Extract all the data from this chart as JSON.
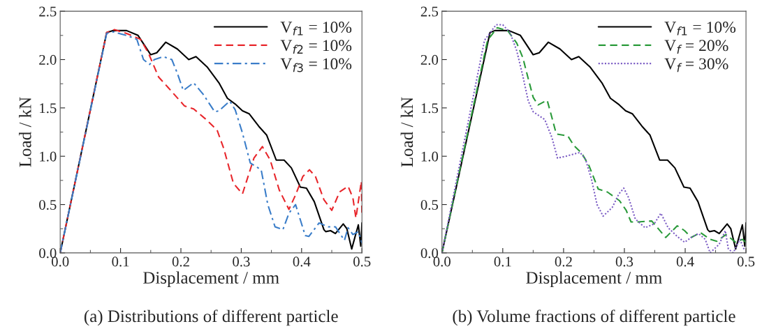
{
  "chart_data": [
    {
      "type": "line",
      "xlabel": "Displacement / mm",
      "ylabel": "Load / kN",
      "annotations": [
        "(a) Distributions of different particle"
      ],
      "xlim": [
        0.0,
        0.5
      ],
      "ylim": [
        0.0,
        2.5
      ],
      "xticks": [
        {
          "value": 0,
          "label": "0.0"
        },
        0.1,
        0.2,
        0.3,
        0.4,
        0.5
      ],
      "yticks": [
        {
          "value": 0,
          "label": "0.0"
        },
        0.5,
        {
          "value": 1,
          "label": "1.0"
        },
        1.5,
        {
          "value": 2,
          "label": "2.0"
        },
        2.5
      ],
      "grid": false,
      "legend": "top right",
      "series": [
        {
          "name": "V$_{f1}$ = 10%",
          "color": "#000000",
          "line_style": "solid",
          "x": [
            0,
            0.077,
            0.087,
            0.11,
            0.129,
            0.15,
            0.16,
            0.175,
            0.194,
            0.213,
            0.225,
            0.244,
            0.263,
            0.277,
            0.29,
            0.302,
            0.313,
            0.329,
            0.342,
            0.358,
            0.371,
            0.383,
            0.398,
            0.408,
            0.421,
            0.437,
            0.44,
            0.448,
            0.456,
            0.469,
            0.475,
            0.483,
            0.494,
            0.498,
            0.5
          ],
          "values": [
            0,
            2.28,
            2.3,
            2.3,
            2.25,
            2.05,
            2.07,
            2.18,
            2.11,
            2.0,
            2.03,
            1.92,
            1.76,
            1.6,
            1.54,
            1.47,
            1.44,
            1.31,
            1.22,
            0.96,
            0.96,
            0.88,
            0.68,
            0.67,
            0.53,
            0.24,
            0.22,
            0.23,
            0.2,
            0.3,
            0.25,
            0.04,
            0.29,
            0.07,
            0.31
          ]
        },
        {
          "name": "V$_{f2}$ = 10%",
          "color": "#e8262b",
          "line_style": "dashed",
          "x": [
            0,
            0.077,
            0.09,
            0.11,
            0.133,
            0.146,
            0.163,
            0.179,
            0.206,
            0.221,
            0.24,
            0.26,
            0.271,
            0.287,
            0.302,
            0.321,
            0.335,
            0.348,
            0.363,
            0.379,
            0.39,
            0.402,
            0.413,
            0.423,
            0.437,
            0.45,
            0.463,
            0.477,
            0.485,
            0.49,
            0.494,
            0.499,
            0.5
          ],
          "values": [
            0,
            2.28,
            2.31,
            2.27,
            2.21,
            2.07,
            1.82,
            1.71,
            1.52,
            1.49,
            1.39,
            1.27,
            1.08,
            0.72,
            0.61,
            0.98,
            1.1,
            0.96,
            0.65,
            0.45,
            0.6,
            0.79,
            0.86,
            0.79,
            0.55,
            0.44,
            0.63,
            0.69,
            0.57,
            0.36,
            0.53,
            0.74,
            0.38
          ]
        },
        {
          "name": "V$_{f3}$ = 10%",
          "color": "#3a7dc9",
          "line_style": "dashdot",
          "x": [
            0,
            0.077,
            0.085,
            0.11,
            0.127,
            0.138,
            0.148,
            0.156,
            0.171,
            0.185,
            0.194,
            0.204,
            0.221,
            0.237,
            0.256,
            0.263,
            0.281,
            0.29,
            0.302,
            0.315,
            0.333,
            0.344,
            0.356,
            0.369,
            0.379,
            0.39,
            0.406,
            0.412,
            0.429,
            0.444,
            0.456,
            0.471,
            0.477,
            0.485,
            0.494,
            0.5
          ],
          "values": [
            0,
            2.27,
            2.29,
            2.25,
            2.21,
            2.0,
            1.95,
            2.0,
            2.03,
            2.0,
            1.86,
            1.68,
            1.76,
            1.64,
            1.46,
            1.47,
            1.57,
            1.48,
            1.24,
            0.93,
            0.86,
            0.5,
            0.27,
            0.24,
            0.41,
            0.5,
            0.18,
            0.17,
            0.31,
            0.27,
            0.27,
            0.13,
            0.26,
            0.19,
            0.22,
            0.1
          ]
        }
      ]
    },
    {
      "type": "line",
      "xlabel": "Displacement / mm",
      "ylabel": "Load / kN",
      "annotations": [
        "(b) Volume fractions of different particle"
      ],
      "xlim": [
        0.0,
        0.5
      ],
      "ylim": [
        0.0,
        2.5
      ],
      "xticks": [
        {
          "value": 0,
          "label": "0.0"
        },
        0.1,
        0.2,
        0.3,
        0.4,
        0.5
      ],
      "yticks": [
        {
          "value": 0,
          "label": "0.0"
        },
        0.5,
        {
          "value": 1,
          "label": "1.0"
        },
        1.5,
        {
          "value": 2,
          "label": "2.0"
        },
        2.5
      ],
      "grid": false,
      "legend": "top right",
      "series": [
        {
          "name": "V$_{f1}$ = 10%",
          "color": "#000000",
          "line_style": "solid",
          "x": [
            0,
            0.079,
            0.087,
            0.11,
            0.129,
            0.15,
            0.16,
            0.175,
            0.194,
            0.213,
            0.225,
            0.244,
            0.263,
            0.277,
            0.29,
            0.302,
            0.313,
            0.329,
            0.342,
            0.358,
            0.371,
            0.383,
            0.398,
            0.408,
            0.421,
            0.437,
            0.44,
            0.448,
            0.456,
            0.469,
            0.475,
            0.483,
            0.494,
            0.498,
            0.5
          ],
          "values": [
            0,
            2.28,
            2.3,
            2.3,
            2.25,
            2.05,
            2.07,
            2.18,
            2.11,
            2.0,
            2.03,
            1.92,
            1.76,
            1.6,
            1.54,
            1.47,
            1.44,
            1.31,
            1.22,
            0.96,
            0.96,
            0.88,
            0.68,
            0.67,
            0.53,
            0.24,
            0.22,
            0.23,
            0.2,
            0.3,
            0.25,
            0.04,
            0.29,
            0.07,
            0.31
          ]
        },
        {
          "name": "V$_{f}$ = 20%",
          "color": "#2a9a3a",
          "line_style": "dashed",
          "x": [
            0,
            0.075,
            0.091,
            0.108,
            0.123,
            0.133,
            0.142,
            0.15,
            0.158,
            0.173,
            0.18,
            0.188,
            0.207,
            0.217,
            0.23,
            0.242,
            0.257,
            0.272,
            0.292,
            0.303,
            0.311,
            0.322,
            0.345,
            0.368,
            0.387,
            0.399,
            0.41,
            0.425,
            0.441,
            0.452,
            0.467,
            0.483,
            0.494,
            0.5
          ],
          "values": [
            0,
            2.2,
            2.33,
            2.3,
            2.17,
            2.02,
            1.8,
            1.61,
            1.53,
            1.58,
            1.42,
            1.23,
            1.21,
            1.11,
            1.03,
            0.9,
            0.66,
            0.63,
            0.54,
            0.44,
            0.32,
            0.32,
            0.33,
            0.16,
            0.28,
            0.23,
            0.16,
            0.21,
            0.14,
            0.12,
            0.19,
            0.11,
            0.14,
            0.11
          ]
        },
        {
          "name": "V$_{f}$ = 30%",
          "color": "#7b5cc4",
          "line_style": "dotted",
          "x": [
            0,
            0.07,
            0.089,
            0.1,
            0.112,
            0.123,
            0.133,
            0.142,
            0.15,
            0.169,
            0.181,
            0.19,
            0.204,
            0.227,
            0.236,
            0.246,
            0.255,
            0.265,
            0.28,
            0.291,
            0.299,
            0.307,
            0.318,
            0.334,
            0.349,
            0.36,
            0.372,
            0.387,
            0.399,
            0.41,
            0.422,
            0.433,
            0.441,
            0.456,
            0.466,
            0.471,
            0.479,
            0.49,
            0.498
          ],
          "values": [
            0,
            2.2,
            2.36,
            2.36,
            2.28,
            2.09,
            1.83,
            1.57,
            1.46,
            1.38,
            1.19,
            0.98,
            1.0,
            1.04,
            0.97,
            0.76,
            0.5,
            0.38,
            0.47,
            0.61,
            0.67,
            0.57,
            0.35,
            0.26,
            0.3,
            0.41,
            0.26,
            0.17,
            0.11,
            0.16,
            0.2,
            0.14,
            0.0,
            0.09,
            0.23,
            0.04,
            0.0,
            0.14,
            0.02
          ]
        }
      ]
    }
  ]
}
